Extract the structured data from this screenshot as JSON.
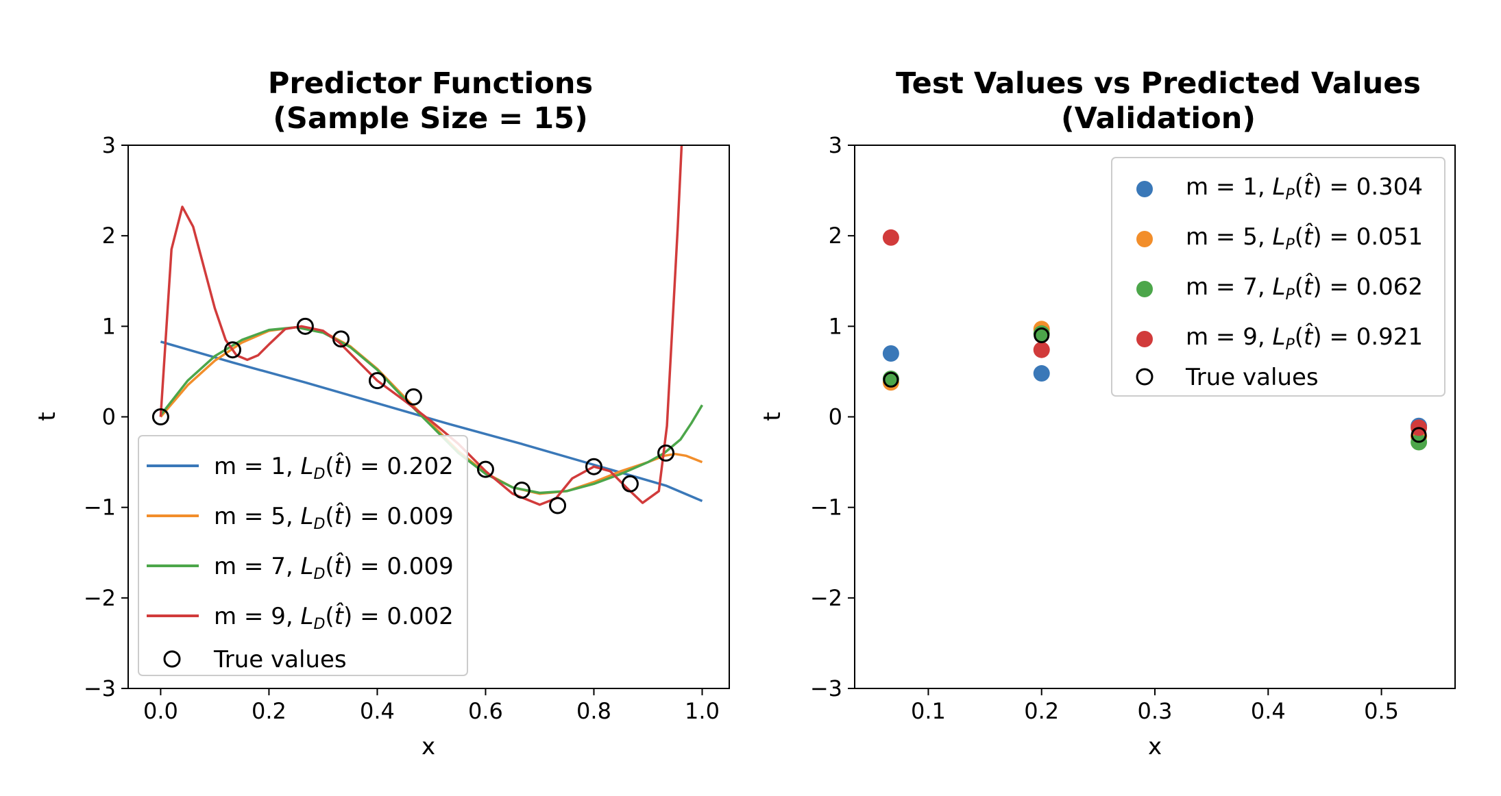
{
  "chart_data": [
    {
      "type": "line",
      "title_line1": "Predictor Functions",
      "title_line2": "(Sample Size = 15)",
      "xlabel": "x",
      "ylabel": "t",
      "xlim": [
        -0.06,
        1.05
      ],
      "ylim": [
        -3,
        3
      ],
      "xticks": [
        0.0,
        0.2,
        0.4,
        0.6,
        0.8,
        1.0
      ],
      "xtick_labels": [
        "0.0",
        "0.2",
        "0.4",
        "0.6",
        "0.8",
        "1.0"
      ],
      "yticks": [
        -3,
        -2,
        -1,
        0,
        1,
        2,
        3
      ],
      "ytick_labels": [
        "−3",
        "−2",
        "−1",
        "0",
        "1",
        "2",
        "3"
      ],
      "legend_position": "lower-left",
      "loss_symbol": "L",
      "loss_subscript": "D",
      "series": [
        {
          "name": "m = 1,",
          "loss": "0.202",
          "color": "#3a78b8",
          "x": [
            0.0,
            0.133,
            0.267,
            0.4,
            0.533,
            0.667,
            0.8,
            0.933,
            1.0
          ],
          "y": [
            0.83,
            0.6,
            0.38,
            0.15,
            -0.08,
            -0.3,
            -0.53,
            -0.76,
            -0.93
          ]
        },
        {
          "name": "m = 5,",
          "loss": "0.009",
          "color": "#f28e2b",
          "x": [
            0.0,
            0.05,
            0.1,
            0.15,
            0.2,
            0.25,
            0.3,
            0.35,
            0.4,
            0.45,
            0.5,
            0.55,
            0.6,
            0.65,
            0.7,
            0.75,
            0.8,
            0.85,
            0.9,
            0.93,
            0.95,
            0.97,
            1.0
          ],
          "y": [
            0.0,
            0.35,
            0.62,
            0.82,
            0.95,
            0.99,
            0.94,
            0.78,
            0.53,
            0.22,
            -0.08,
            -0.38,
            -0.62,
            -0.78,
            -0.85,
            -0.82,
            -0.72,
            -0.6,
            -0.5,
            -0.43,
            -0.41,
            -0.43,
            -0.5
          ]
        },
        {
          "name": "m = 7,",
          "loss": "0.009",
          "color": "#4ca64a",
          "x": [
            0.0,
            0.05,
            0.1,
            0.15,
            0.2,
            0.25,
            0.3,
            0.35,
            0.4,
            0.45,
            0.5,
            0.55,
            0.6,
            0.65,
            0.7,
            0.75,
            0.8,
            0.85,
            0.9,
            0.93,
            0.96,
            0.98,
            1.0
          ],
          "y": [
            0.02,
            0.4,
            0.67,
            0.85,
            0.96,
            0.99,
            0.93,
            0.77,
            0.52,
            0.2,
            -0.1,
            -0.4,
            -0.63,
            -0.78,
            -0.84,
            -0.82,
            -0.74,
            -0.63,
            -0.5,
            -0.4,
            -0.25,
            -0.07,
            0.13
          ]
        },
        {
          "name": "m = 9,",
          "loss": "0.002",
          "color": "#d13b3b",
          "x": [
            0.0,
            0.02,
            0.04,
            0.06,
            0.08,
            0.1,
            0.12,
            0.14,
            0.16,
            0.18,
            0.2,
            0.23,
            0.26,
            0.3,
            0.33,
            0.37,
            0.4,
            0.45,
            0.5,
            0.55,
            0.6,
            0.65,
            0.7,
            0.73,
            0.76,
            0.8,
            0.83,
            0.86,
            0.89,
            0.92,
            0.935,
            0.945,
            0.955,
            0.962
          ],
          "y": [
            0.0,
            1.85,
            2.32,
            2.1,
            1.65,
            1.2,
            0.85,
            0.68,
            0.63,
            0.68,
            0.8,
            0.97,
            1.0,
            0.95,
            0.82,
            0.58,
            0.4,
            0.18,
            -0.05,
            -0.3,
            -0.6,
            -0.85,
            -0.97,
            -0.9,
            -0.68,
            -0.55,
            -0.6,
            -0.78,
            -0.95,
            -0.82,
            -0.1,
            1.0,
            2.1,
            3.0
          ]
        },
        {
          "name": "True values",
          "marker": "open-circle",
          "color": "#000000",
          "x": [
            0.0,
            0.133,
            0.267,
            0.333,
            0.4,
            0.467,
            0.6,
            0.667,
            0.733,
            0.8,
            0.867,
            0.933
          ],
          "y": [
            0.0,
            0.74,
            1.0,
            0.86,
            0.4,
            0.22,
            -0.58,
            -0.81,
            -0.98,
            -0.55,
            -0.74,
            -0.4
          ]
        }
      ]
    },
    {
      "type": "scatter",
      "title_line1": "Test Values vs Predicted Values",
      "title_line2": "(Validation)",
      "xlabel": "x",
      "ylabel": "t",
      "xlim": [
        0.035,
        0.565
      ],
      "ylim": [
        -3,
        3
      ],
      "xticks": [
        0.1,
        0.2,
        0.3,
        0.4,
        0.5
      ],
      "xtick_labels": [
        "0.1",
        "0.2",
        "0.3",
        "0.4",
        "0.5"
      ],
      "yticks": [
        -3,
        -2,
        -1,
        0,
        1,
        2,
        3
      ],
      "ytick_labels": [
        "−3",
        "−2",
        "−1",
        "0",
        "1",
        "2",
        "3"
      ],
      "legend_position": "upper-right",
      "loss_symbol": "L",
      "loss_subscript": "P",
      "series": [
        {
          "name": "m = 1,",
          "loss": "0.304",
          "color": "#3a78b8",
          "x": [
            0.067,
            0.2,
            0.533
          ],
          "y": [
            0.7,
            0.48,
            -0.1
          ]
        },
        {
          "name": "m = 5,",
          "loss": "0.051",
          "color": "#f28e2b",
          "x": [
            0.067,
            0.2,
            0.533
          ],
          "y": [
            0.38,
            0.97,
            -0.22
          ]
        },
        {
          "name": "m = 7,",
          "loss": "0.062",
          "color": "#4ca64a",
          "x": [
            0.067,
            0.2,
            0.533
          ],
          "y": [
            0.42,
            0.92,
            -0.28
          ]
        },
        {
          "name": "m = 9,",
          "loss": "0.921",
          "color": "#d13b3b",
          "x": [
            0.067,
            0.2,
            0.533
          ],
          "y": [
            1.98,
            0.74,
            -0.12
          ]
        },
        {
          "name": "True values",
          "marker": "open-circle",
          "color": "#000000",
          "x": [
            0.067,
            0.2,
            0.533
          ],
          "y": [
            0.41,
            0.9,
            -0.2
          ]
        }
      ]
    }
  ]
}
